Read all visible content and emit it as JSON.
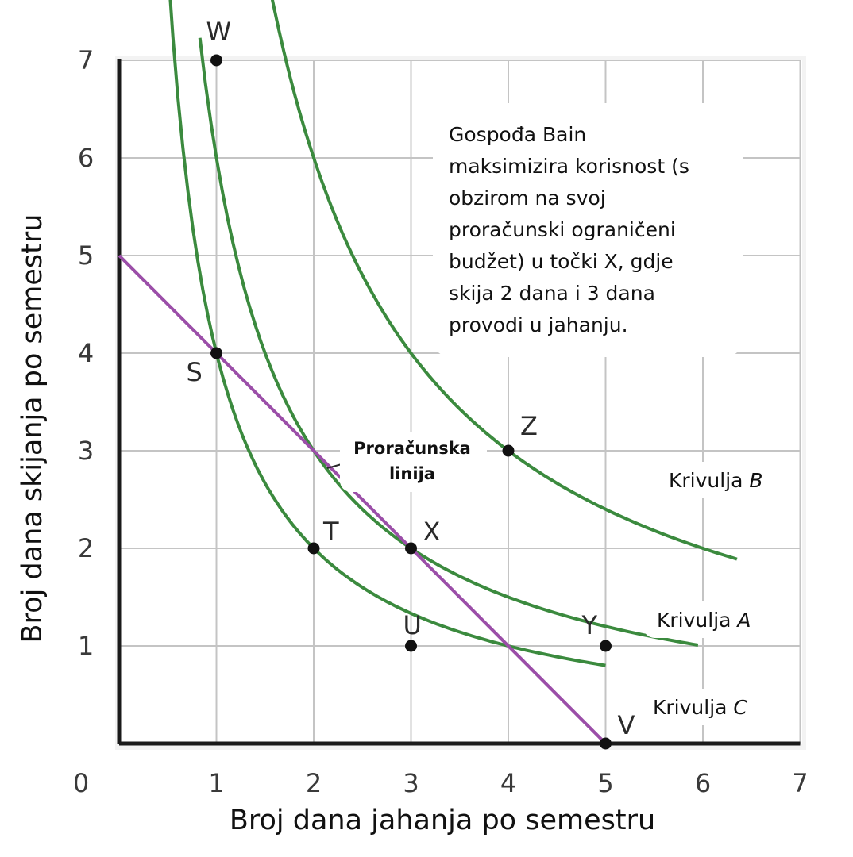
{
  "chart_data": {
    "type": "line",
    "title": "",
    "xlabel": "Broj dana jahanja po semestru",
    "ylabel": "Broj dana skijanja po semestru",
    "xlim": [
      0,
      7
    ],
    "ylim": [
      0,
      7
    ],
    "x_ticks": [
      "0",
      "1",
      "2",
      "3",
      "4",
      "5",
      "6",
      "7"
    ],
    "y_ticks": [
      "1",
      "2",
      "3",
      "4",
      "5",
      "6",
      "7"
    ],
    "grid": true,
    "colors": {
      "curves": "#3b8a3e",
      "budget": "#9b4ea8",
      "points": "#111111",
      "grid": "#c4c4c4"
    },
    "curves": [
      {
        "label_prefix": "Krivulja ",
        "label_letter": "B",
        "k": 12,
        "x_range": [
          1.42,
          6.35
        ],
        "label_anchor": [
          6.2,
          2.6
        ]
      },
      {
        "label_prefix": "Krivulja ",
        "label_letter": "A",
        "k": 6,
        "x_range": [
          0.83,
          5.95
        ],
        "label_anchor": [
          6.2,
          1.15
        ]
      },
      {
        "label_prefix": "Krivulja ",
        "label_letter": "C",
        "k": 4,
        "x_range": [
          0.4,
          5.0
        ],
        "label_anchor": [
          6.2,
          0.28
        ]
      }
    ],
    "budget_line": {
      "label": [
        "Proračunska",
        "linija"
      ],
      "points": [
        [
          0,
          5
        ],
        [
          5,
          0
        ]
      ]
    },
    "points": [
      {
        "name": "W",
        "x": 1,
        "y": 7
      },
      {
        "name": "S",
        "x": 1,
        "y": 4
      },
      {
        "name": "Z",
        "x": 4,
        "y": 3
      },
      {
        "name": "T",
        "x": 2,
        "y": 2
      },
      {
        "name": "X",
        "x": 3,
        "y": 2
      },
      {
        "name": "U",
        "x": 3,
        "y": 1
      },
      {
        "name": "Y",
        "x": 5,
        "y": 1
      },
      {
        "name": "V",
        "x": 5,
        "y": 0
      }
    ],
    "annotation": [
      "Gospođa Bain",
      "maksimizira korisnost (s",
      "obzirom na svoj",
      "proračunski ograničeni",
      "budžet) u točki X, gdje",
      "skija 2 dana i 3 dana",
      "provodi u jahanju."
    ]
  }
}
